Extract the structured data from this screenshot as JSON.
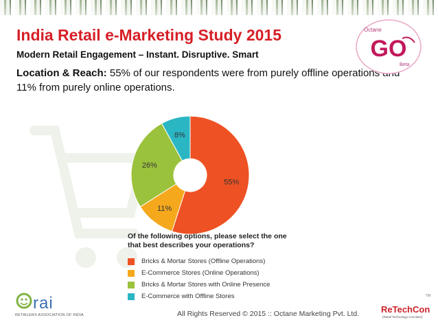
{
  "header": {
    "title": "India Retail e-Marketing Study 2015",
    "subtitle": "Modern Retail Engagement – Instant. Disruptive. Smart",
    "lead_label": "Location & Reach:",
    "lead_text": " 55% of our respondents were from purely offline operations and 11% from purely online operations."
  },
  "go_logo": {
    "top_text": "Octane",
    "main_text": "GO",
    "bottom_text": "Beta"
  },
  "chart_data": {
    "type": "pie",
    "variant": "donut",
    "title": "Of the following options, please select the one that best describes your operations?",
    "categories": [
      "Bricks & Mortar Stores (Offline Operations)",
      "E-Commerce Stores (Online Operations)",
      "Bricks & Mortar Stores with Online Presence",
      "E-Commerce with Offline Stores"
    ],
    "values": [
      55,
      11,
      26,
      8
    ],
    "data_labels": [
      "55%",
      "11%",
      "26%",
      "8%"
    ],
    "colors": [
      "#ee5123",
      "#f5a81c",
      "#9bc23c",
      "#2bb6c4"
    ],
    "legend_position": "bottom"
  },
  "rai_logo": {
    "name": "rai",
    "full_name": "RETAILERS ASSOCIATION OF INDIA"
  },
  "footer": {
    "copyright": "All Rights Reserved © 2015 :: Octane Marketing Pvt. Ltd."
  },
  "retechcon_logo": {
    "name": "ReTechCon",
    "tagline": "(Retail Technology Conclave)",
    "tm": "TM"
  }
}
